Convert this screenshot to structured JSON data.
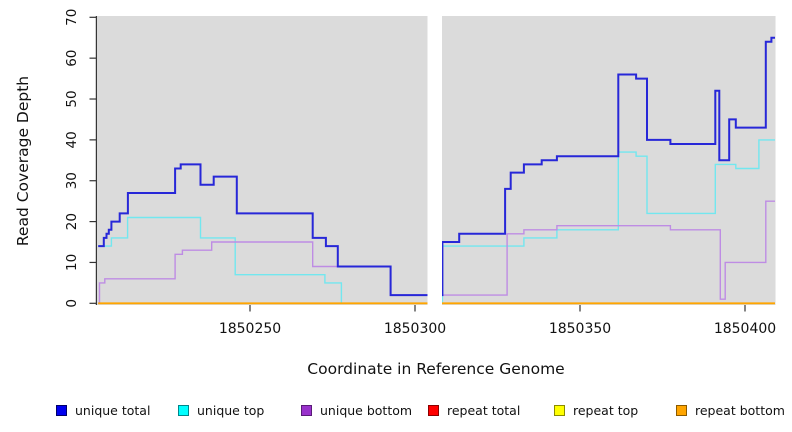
{
  "figure": {
    "x_axis_title": "Coordinate in Reference Genome",
    "y_axis_title": "Read Coverage Depth"
  },
  "axes": {
    "x_ticks": [
      {
        "value": 1850250,
        "label": "1850250"
      },
      {
        "value": 1850300,
        "label": "1850300"
      },
      {
        "value": 1850350,
        "label": "1850350"
      },
      {
        "value": 1850400,
        "label": "1850400"
      }
    ],
    "y_ticks": [
      {
        "value": 0,
        "label": "0"
      },
      {
        "value": 10,
        "label": "10"
      },
      {
        "value": 20,
        "label": "20"
      },
      {
        "value": 30,
        "label": "30"
      },
      {
        "value": 40,
        "label": "40"
      },
      {
        "value": 50,
        "label": "50"
      },
      {
        "value": 60,
        "label": "60"
      },
      {
        "value": 70,
        "label": "70"
      }
    ]
  },
  "legend": [
    {
      "label": "unique total",
      "color": "#0000EE",
      "border": "#00006A"
    },
    {
      "label": "unique top",
      "color": "#00FFFF",
      "border": "#00868B"
    },
    {
      "label": "unique bottom",
      "color": "#9932CC",
      "border": "#5A1B78"
    },
    {
      "label": "repeat total",
      "color": "#FF0000",
      "border": "#8B0000"
    },
    {
      "label": "repeat top",
      "color": "#FFFF00",
      "border": "#8B8B00"
    },
    {
      "label": "repeat bottom",
      "color": "#FFA500",
      "border": "#8B5A00"
    }
  ],
  "colors": {
    "panel": "#DBDBDB",
    "background": "#FFFFFF",
    "gap": "#FFFFFF",
    "axis": "#333333",
    "tick_label": "#111111"
  },
  "chart_data": {
    "type": "line",
    "step": true,
    "title": "",
    "xlabel": "Coordinate in Reference Genome",
    "ylabel": "Read Coverage Depth",
    "xlim": [
      1850203.6,
      1850409.1
    ],
    "ylim": [
      0,
      70
    ],
    "grid": false,
    "legend_position": "bottom",
    "gap_x": [
      1850303.8,
      1850308.2
    ],
    "draw_order": [
      "repeat total",
      "repeat top",
      "unique top",
      "unique bottom",
      "unique total",
      "repeat bottom"
    ],
    "series": [
      {
        "name": "unique total",
        "line_color": "#2727D8",
        "line_width": 2,
        "steps": [
          [
            1850204,
            14
          ],
          [
            1850205.7,
            16
          ],
          [
            1850206.5,
            17
          ],
          [
            1850207.2,
            18
          ],
          [
            1850208,
            20
          ],
          [
            1850210.5,
            22
          ],
          [
            1850213,
            27
          ],
          [
            1850227.3,
            33
          ],
          [
            1850229,
            34
          ],
          [
            1850235,
            29
          ],
          [
            1850239,
            31
          ],
          [
            1850246,
            22
          ],
          [
            1850269,
            16
          ],
          [
            1850273,
            14
          ],
          [
            1850276.6,
            9
          ],
          [
            1850292.6,
            2
          ],
          [
            1850308.3,
            15
          ],
          [
            1850313.4,
            17
          ],
          [
            1850327.3,
            28
          ],
          [
            1850329,
            32
          ],
          [
            1850333,
            34
          ],
          [
            1850338.4,
            35
          ],
          [
            1850343,
            36
          ],
          [
            1850361.6,
            56
          ],
          [
            1850367,
            55
          ],
          [
            1850370.3,
            40
          ],
          [
            1850377.4,
            39
          ],
          [
            1850391,
            52
          ],
          [
            1850392.2,
            35
          ],
          [
            1850395.2,
            45
          ],
          [
            1850397.2,
            43
          ],
          [
            1850406.3,
            64
          ],
          [
            1850408,
            65
          ]
        ]
      },
      {
        "name": "unique top",
        "line_color": "#72E7EF",
        "line_width": 1.4,
        "steps": [
          [
            1850204,
            14
          ],
          [
            1850208,
            16
          ],
          [
            1850212.9,
            21
          ],
          [
            1850235,
            16
          ],
          [
            1850245.5,
            7
          ],
          [
            1850272.7,
            5
          ],
          [
            1850277.7,
            0
          ],
          [
            1850308.3,
            14
          ],
          [
            1850333,
            16
          ],
          [
            1850343,
            18
          ],
          [
            1850361.6,
            37
          ],
          [
            1850367,
            36
          ],
          [
            1850370.3,
            22
          ],
          [
            1850391,
            34
          ],
          [
            1850397.2,
            33
          ],
          [
            1850404.2,
            40
          ]
        ]
      },
      {
        "name": "unique bottom",
        "line_color": "#BE8CE4",
        "line_width": 1.4,
        "steps": [
          [
            1850204,
            0
          ],
          [
            1850204.4,
            5
          ],
          [
            1850206,
            6
          ],
          [
            1850227.3,
            12
          ],
          [
            1850229.5,
            13
          ],
          [
            1850238.4,
            15
          ],
          [
            1850269,
            9
          ],
          [
            1850292.6,
            2
          ],
          [
            1850327.9,
            17
          ],
          [
            1850333,
            18
          ],
          [
            1850343,
            19
          ],
          [
            1850377.4,
            18
          ],
          [
            1850392.5,
            1
          ],
          [
            1850394,
            10
          ],
          [
            1850406.3,
            25
          ]
        ]
      },
      {
        "name": "repeat total",
        "line_color": "#DD2222",
        "line_width": 1.4,
        "steps": [
          [
            1850204,
            0
          ]
        ]
      },
      {
        "name": "repeat top",
        "line_color": "#FFFF33",
        "line_width": 1.4,
        "steps": [
          [
            1850204,
            0
          ]
        ]
      },
      {
        "name": "repeat bottom",
        "line_color": "#FFA500",
        "line_width": 1.8,
        "steps": [
          [
            1850204,
            0
          ]
        ]
      }
    ]
  }
}
